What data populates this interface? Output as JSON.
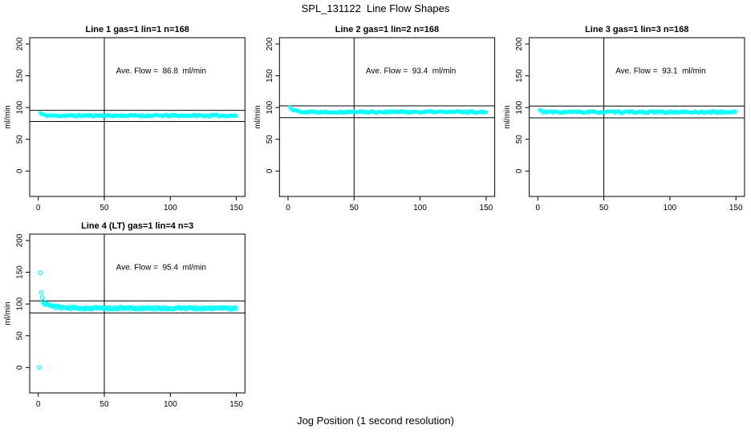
{
  "page": {
    "title": "SPL_131122  Line Flow Shapes",
    "xlabel": "Jog Position (1 second resolution)",
    "background": "#ffffff",
    "point_color": "#00ffff",
    "axis_color": "#000000"
  },
  "chart_data": [
    {
      "type": "scatter",
      "panel": 1,
      "grid_pos": {
        "row": 0,
        "col": 0
      },
      "title": "Line 1 gas=1 lin=1 n=168",
      "annotation": "Ave. Flow =  86.8  ml/min",
      "ave_flow_ml_min": 86.8,
      "n": 168,
      "ylabel": "ml/min",
      "x_ticks": [
        0,
        50,
        100,
        150
      ],
      "y_ticks": [
        0,
        50,
        100,
        150,
        200
      ],
      "xlim": [
        -6.5,
        156.5
      ],
      "ylim": [
        -40,
        210
      ],
      "vline_x": 50,
      "ref_lines": [
        95.5,
        78.1
      ],
      "annotation_x": 93,
      "annotation_y": 154,
      "marker_r": 1.8,
      "series": {
        "x_start": 1.5,
        "x_end": 150,
        "n_points": 168,
        "y_start": 91.5,
        "y_settle": 87.2,
        "decay_tau": 2.0,
        "jitter": 1.5,
        "seed": 11
      },
      "outliers": []
    },
    {
      "type": "scatter",
      "panel": 2,
      "grid_pos": {
        "row": 0,
        "col": 1
      },
      "title": "Line 2 gas=1 lin=2 n=168",
      "annotation": "Ave. Flow =  93.4  ml/min",
      "ave_flow_ml_min": 93.4,
      "n": 168,
      "ylabel": "ml/min",
      "x_ticks": [
        0,
        50,
        100,
        150
      ],
      "y_ticks": [
        0,
        50,
        100,
        150,
        200
      ],
      "xlim": [
        -6.5,
        156.5
      ],
      "ylim": [
        -40,
        210
      ],
      "vline_x": 50,
      "ref_lines": [
        102.7,
        84.1
      ],
      "annotation_x": 93,
      "annotation_y": 154,
      "marker_r": 1.8,
      "series": {
        "x_start": 1.5,
        "x_end": 150,
        "n_points": 168,
        "y_start": 100.8,
        "y_settle": 93.1,
        "decay_tau": 3.2,
        "jitter": 1.5,
        "seed": 22
      },
      "outliers": []
    },
    {
      "type": "scatter",
      "panel": 3,
      "grid_pos": {
        "row": 0,
        "col": 2
      },
      "title": "Line 3 gas=1 lin=3 n=168",
      "annotation": "Ave. Flow =  93.1  ml/min",
      "ave_flow_ml_min": 93.1,
      "n": 168,
      "ylabel": "ml/min",
      "x_ticks": [
        0,
        50,
        100,
        150
      ],
      "y_ticks": [
        0,
        50,
        100,
        150,
        200
      ],
      "xlim": [
        -6.5,
        156.5
      ],
      "ylim": [
        -40,
        210
      ],
      "vline_x": 50,
      "ref_lines": [
        102.4,
        83.8
      ],
      "annotation_x": 93,
      "annotation_y": 154,
      "marker_r": 1.8,
      "series": {
        "x_start": 1.5,
        "x_end": 150,
        "n_points": 168,
        "y_start": 96.0,
        "y_settle": 92.8,
        "decay_tau": 1.6,
        "jitter": 1.5,
        "seed": 33
      },
      "outliers": []
    },
    {
      "type": "scatter",
      "panel": 4,
      "grid_pos": {
        "row": 1,
        "col": 0
      },
      "title": "Line 4 (LT) gas=1 lin=4 n=3",
      "annotation": "Ave. Flow =  95.4  ml/min",
      "ave_flow_ml_min": 95.4,
      "n": 3,
      "ylabel": "ml/min",
      "x_ticks": [
        0,
        50,
        100,
        150
      ],
      "y_ticks": [
        0,
        50,
        100,
        150,
        200
      ],
      "xlim": [
        -6.5,
        156.5
      ],
      "ylim": [
        -40,
        210
      ],
      "vline_x": 50,
      "ref_lines": [
        104.9,
        85.9
      ],
      "annotation_x": 93,
      "annotation_y": 154,
      "marker_r": 2.3,
      "series": {
        "x_start": 3.5,
        "x_end": 150,
        "n_points": 163,
        "y_start": 103.0,
        "y_settle": 93.3,
        "decay_tau": 7.0,
        "jitter": 1.8,
        "seed": 44
      },
      "outliers": [
        [
          0.8,
          0
        ],
        [
          1.6,
          149
        ],
        [
          2.4,
          118
        ],
        [
          3.0,
          110
        ]
      ]
    }
  ]
}
